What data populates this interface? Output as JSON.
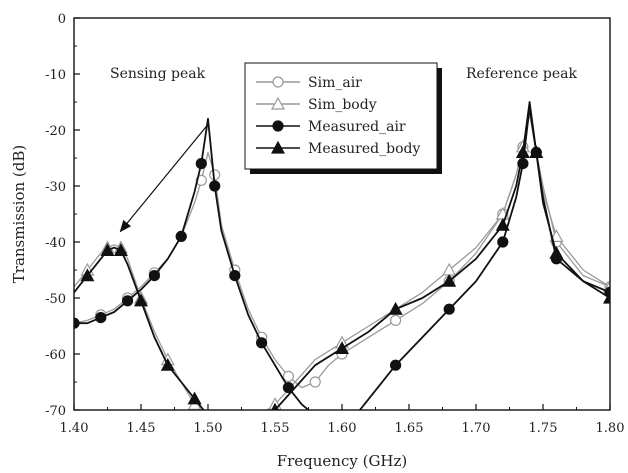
{
  "chart_data": {
    "type": "line",
    "title": "",
    "xlabel": "Frequency (GHz)",
    "ylabel": "Transmission (dB)",
    "xlim": [
      1.4,
      1.8
    ],
    "ylim": [
      -70,
      0
    ],
    "xticks": [
      1.4,
      1.45,
      1.5,
      1.55,
      1.6,
      1.65,
      1.7,
      1.75,
      1.8
    ],
    "xtick_labels": [
      "1.40",
      "1.45",
      "1.50",
      "1.55",
      "1.60",
      "1.65",
      "1.70",
      "1.75",
      "1.80"
    ],
    "yticks": [
      0,
      -10,
      -20,
      -30,
      -40,
      -50,
      -60,
      -70
    ],
    "ytick_labels": [
      "0",
      "-10",
      "-20",
      "-30",
      "-40",
      "-50",
      "-60",
      "-70"
    ],
    "grid": false,
    "legend_position": "top-center",
    "annotations": [
      {
        "text": "Sensing peak",
        "x": 1.432,
        "y": -10
      },
      {
        "text": "Reference peak",
        "x": 1.745,
        "y": -10
      }
    ],
    "arrow": {
      "from": [
        1.5,
        -19
      ],
      "to": [
        1.435,
        -38
      ]
    },
    "series": [
      {
        "name": "Sim_air",
        "color": "#9a9a9a",
        "marker": "circle-open",
        "x": [
          1.4,
          1.41,
          1.42,
          1.43,
          1.44,
          1.45,
          1.46,
          1.47,
          1.48,
          1.49,
          1.495,
          1.5,
          1.505,
          1.51,
          1.52,
          1.53,
          1.54,
          1.55,
          1.56,
          1.57,
          1.58,
          1.59,
          1.6,
          1.62,
          1.64,
          1.66,
          1.68,
          1.7,
          1.72,
          1.73,
          1.735,
          1.74,
          1.745,
          1.75,
          1.76,
          1.78,
          1.8
        ],
        "y": [
          -54.5,
          -54,
          -53,
          -52,
          -50,
          -48,
          -45.5,
          -43,
          -39,
          -33,
          -29,
          -24,
          -28,
          -37,
          -45,
          -52,
          -57,
          -61,
          -64,
          -66,
          -65,
          -62,
          -60,
          -57,
          -54,
          -51,
          -47,
          -42,
          -35,
          -28,
          -23,
          -17,
          -24,
          -30,
          -40,
          -46,
          -48
        ]
      },
      {
        "name": "Sim_body",
        "color": "#9a9a9a",
        "marker": "triangle-open",
        "x": [
          1.4,
          1.41,
          1.42,
          1.425,
          1.43,
          1.435,
          1.44,
          1.45,
          1.46,
          1.47,
          1.48,
          1.49,
          1.5,
          1.51,
          1.52,
          1.55,
          1.58,
          1.6,
          1.62,
          1.64,
          1.66,
          1.68,
          1.7,
          1.72,
          1.73,
          1.735,
          1.74,
          1.745,
          1.75,
          1.76,
          1.78,
          1.8
        ],
        "y": [
          -48,
          -45,
          -42,
          -41,
          -40.5,
          -41,
          -43,
          -50,
          -56,
          -61,
          -65,
          -69,
          -71,
          -73,
          -74,
          -69,
          -61,
          -58,
          -55,
          -52,
          -49,
          -45,
          -41,
          -35,
          -28,
          -23,
          -17,
          -24,
          -31,
          -39,
          -45,
          -48
        ]
      },
      {
        "name": "Measured_air",
        "color": "#111111",
        "marker": "circle-filled",
        "x": [
          1.4,
          1.41,
          1.42,
          1.43,
          1.44,
          1.45,
          1.46,
          1.47,
          1.48,
          1.49,
          1.495,
          1.5,
          1.505,
          1.51,
          1.52,
          1.53,
          1.54,
          1.55,
          1.56,
          1.57,
          1.58,
          1.59,
          1.6,
          1.62,
          1.64,
          1.66,
          1.68,
          1.7,
          1.72,
          1.73,
          1.735,
          1.74,
          1.745,
          1.75,
          1.76,
          1.78,
          1.8
        ],
        "y": [
          -54.5,
          -54.5,
          -53.5,
          -52.5,
          -50.5,
          -48.5,
          -46,
          -43,
          -39,
          -31,
          -26,
          -18,
          -30,
          -38,
          -46,
          -53,
          -58,
          -62,
          -66,
          -69,
          -71,
          -73,
          -74,
          -68,
          -62,
          -57,
          -52,
          -47,
          -40,
          -32,
          -26,
          -16,
          -24,
          -32,
          -43,
          -47,
          -49
        ]
      },
      {
        "name": "Measured_body",
        "color": "#111111",
        "marker": "triangle-filled",
        "x": [
          1.4,
          1.41,
          1.42,
          1.425,
          1.43,
          1.435,
          1.44,
          1.45,
          1.46,
          1.47,
          1.48,
          1.49,
          1.5,
          1.51,
          1.52,
          1.55,
          1.58,
          1.6,
          1.62,
          1.64,
          1.66,
          1.68,
          1.7,
          1.72,
          1.73,
          1.735,
          1.74,
          1.745,
          1.75,
          1.76,
          1.78,
          1.8
        ],
        "y": [
          -49,
          -46,
          -43,
          -41.5,
          -41,
          -41.5,
          -44,
          -50.5,
          -57,
          -62,
          -65,
          -68,
          -71,
          -74,
          -75,
          -70,
          -62,
          -59,
          -56,
          -52,
          -50,
          -47,
          -43,
          -37,
          -30,
          -24,
          -15,
          -24,
          -33,
          -42,
          -47,
          -50
        ]
      }
    ]
  }
}
